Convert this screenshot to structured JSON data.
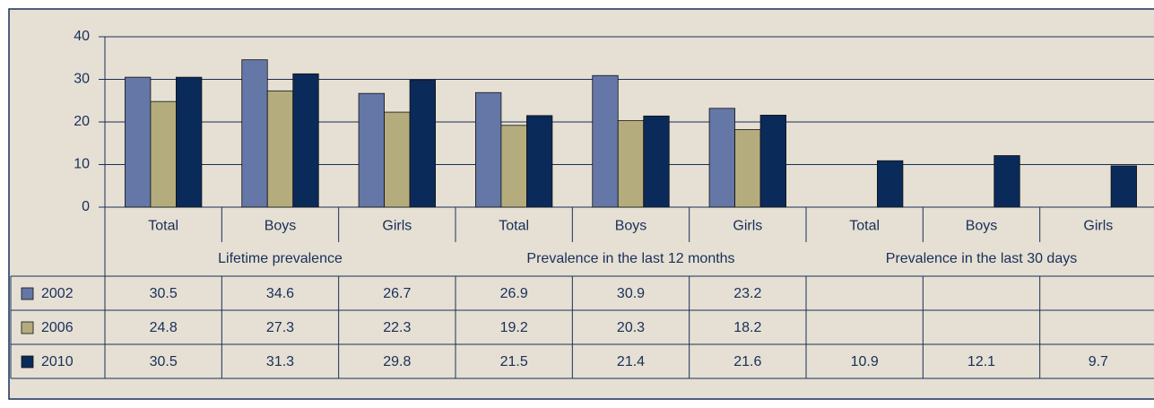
{
  "chart_data": {
    "type": "bar",
    "categories": [
      "Total",
      "Boys",
      "Girls",
      "Total",
      "Boys",
      "Girls",
      "Total",
      "Boys",
      "Girls"
    ],
    "groups": [
      "Lifetime prevalence",
      "Prevalence in the last 12 months",
      "Prevalence in the last 30 days"
    ],
    "series": [
      {
        "name": "2002",
        "color": "#6477a6",
        "values": [
          30.5,
          34.6,
          26.7,
          26.9,
          30.9,
          23.2,
          null,
          null,
          null
        ]
      },
      {
        "name": "2006",
        "color": "#b5ac7e",
        "values": [
          24.8,
          27.3,
          22.3,
          19.2,
          20.3,
          18.2,
          null,
          null,
          null
        ]
      },
      {
        "name": "2010",
        "color": "#0a2a5a",
        "values": [
          30.5,
          31.3,
          29.8,
          21.5,
          21.4,
          21.6,
          10.9,
          12.1,
          9.7
        ]
      }
    ],
    "ylim": [
      0,
      40
    ],
    "yticks": [
      0,
      10,
      20,
      30,
      40
    ],
    "grid": true
  }
}
